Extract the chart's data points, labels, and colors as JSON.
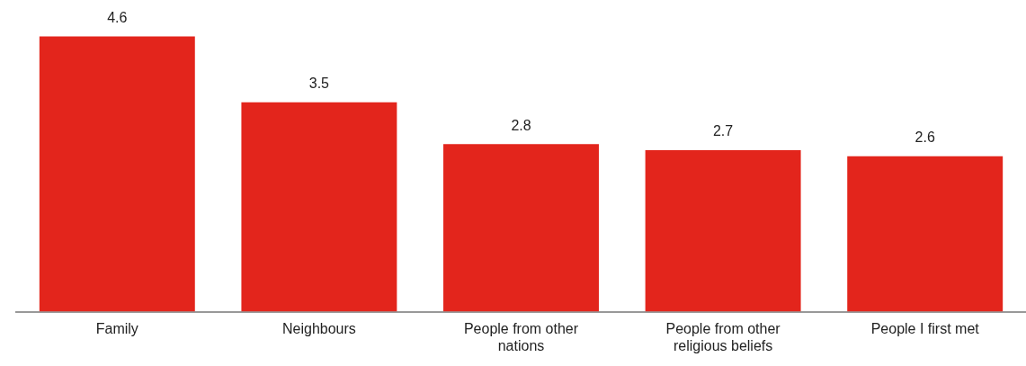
{
  "chart_data": {
    "type": "bar",
    "categories": [
      "Family",
      "Neighbours",
      "People from other nations",
      "People from other religious beliefs",
      "People I first met"
    ],
    "values": [
      4.6,
      3.5,
      2.8,
      2.7,
      2.6
    ],
    "color": "#e3251c",
    "relative": false,
    "data_labels": true,
    "grid": false,
    "legend": false
  }
}
